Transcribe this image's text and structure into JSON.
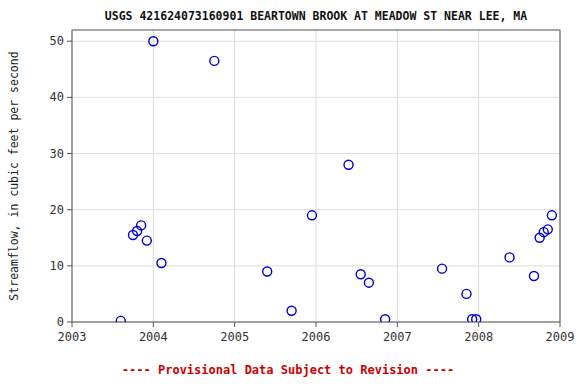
{
  "chart_data": {
    "type": "scatter",
    "title": "USGS 421624073160901 BEARTOWN BROOK AT MEADOW ST NEAR LEE, MA",
    "y_label": "Streamflow, in cubic feet per second",
    "annotations": [
      {
        "text": "---- Provisional Data Subject to Revision ----",
        "color": "#cc0000"
      }
    ],
    "x": [
      2003.6,
      2003.75,
      2003.8,
      2003.85,
      2003.92,
      2004.0,
      2004.1,
      2004.75,
      2005.4,
      2005.7,
      2005.95,
      2006.4,
      2006.55,
      2006.65,
      2006.85,
      2007.55,
      2007.85,
      2007.92,
      2007.97,
      2008.38,
      2008.68,
      2008.75,
      2008.8,
      2008.85,
      2008.9
    ],
    "values": [
      0.2,
      15.5,
      16.2,
      17.2,
      14.5,
      50.0,
      10.5,
      46.5,
      9.0,
      2.0,
      19.0,
      28.0,
      8.5,
      7.0,
      0.5,
      9.5,
      5.0,
      0.5,
      0.5,
      11.5,
      8.2,
      15.0,
      16.0,
      16.5,
      19.0
    ],
    "color": "#0000CC",
    "marker": "open-circle",
    "xlim": [
      2003,
      2009
    ],
    "ylim": [
      0,
      52
    ],
    "xticks": [
      2003,
      2004,
      2005,
      2006,
      2007,
      2008,
      2009
    ],
    "yticks": [
      0,
      10,
      20,
      30,
      40,
      50
    ],
    "grid": true
  }
}
